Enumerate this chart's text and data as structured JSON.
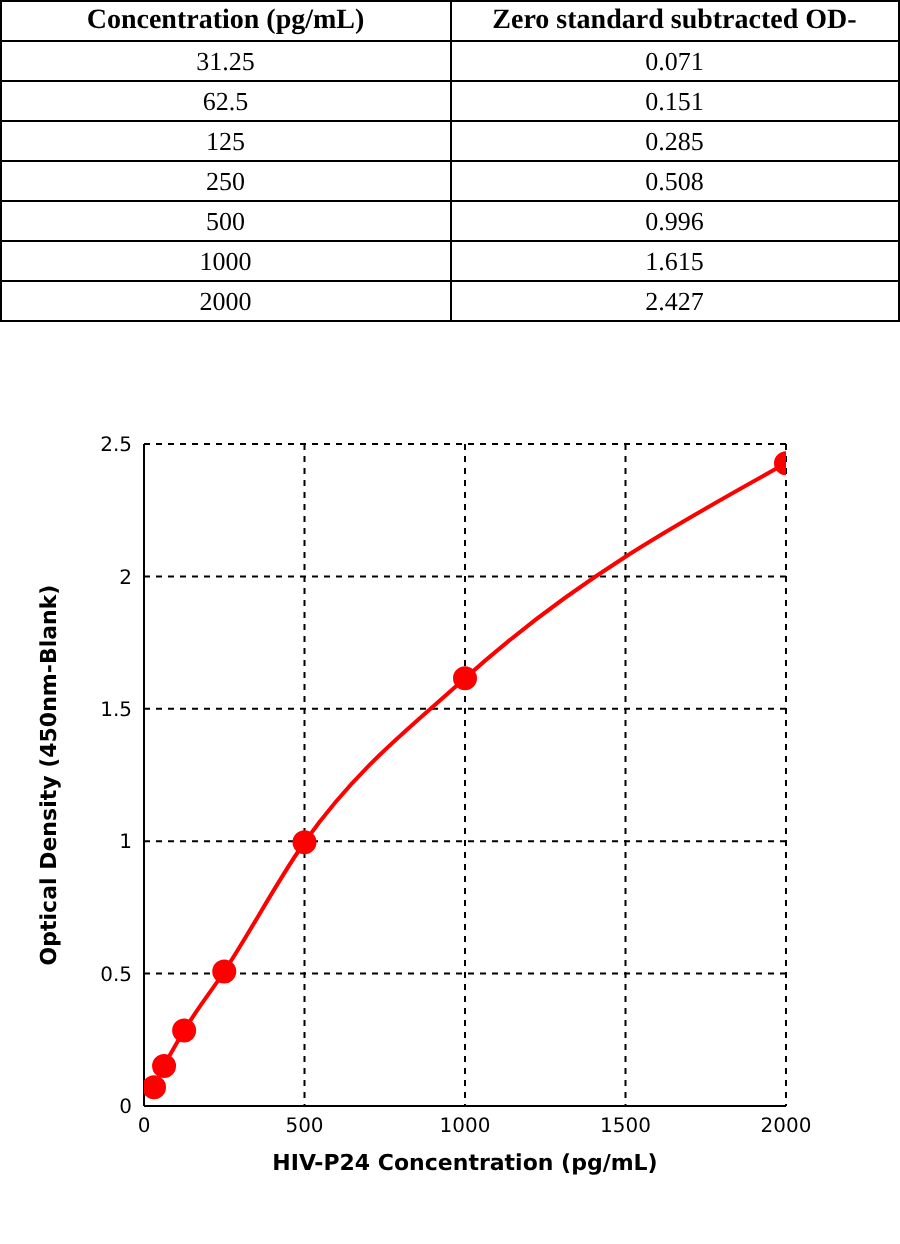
{
  "chart_data": [
    {
      "type": "other",
      "xlabel": "Concentration (pg/mL)",
      "ylabel": "Zero standard subtracted OD-",
      "categories": [
        "31.25",
        "62.5",
        "125",
        "250",
        "500",
        "1000",
        "2000"
      ],
      "values": [
        0.071,
        0.151,
        0.285,
        0.508,
        0.996,
        1.615,
        2.427
      ],
      "data_labels": true
    },
    {
      "type": "line",
      "xlabel": "HIV-P24 Concentration (pg/mL)",
      "ylabel": "Optical Density (450nm-Blank)",
      "x": [
        31.25,
        62.5,
        125,
        250,
        500,
        1000,
        2000
      ],
      "series": [
        {
          "color": "#ff0000",
          "values": [
            0.071,
            0.151,
            0.285,
            0.508,
            0.996,
            1.615,
            2.427
          ]
        }
      ],
      "xlim": [
        0,
        2000
      ],
      "xticks": [
        0,
        500,
        1000,
        1500,
        2000
      ],
      "ylim": [
        0,
        2.5
      ],
      "yticks": [
        0,
        0.5,
        1,
        1.5,
        2,
        2.5
      ],
      "grid": true,
      "marker": "circle",
      "line_style": "solid"
    }
  ]
}
